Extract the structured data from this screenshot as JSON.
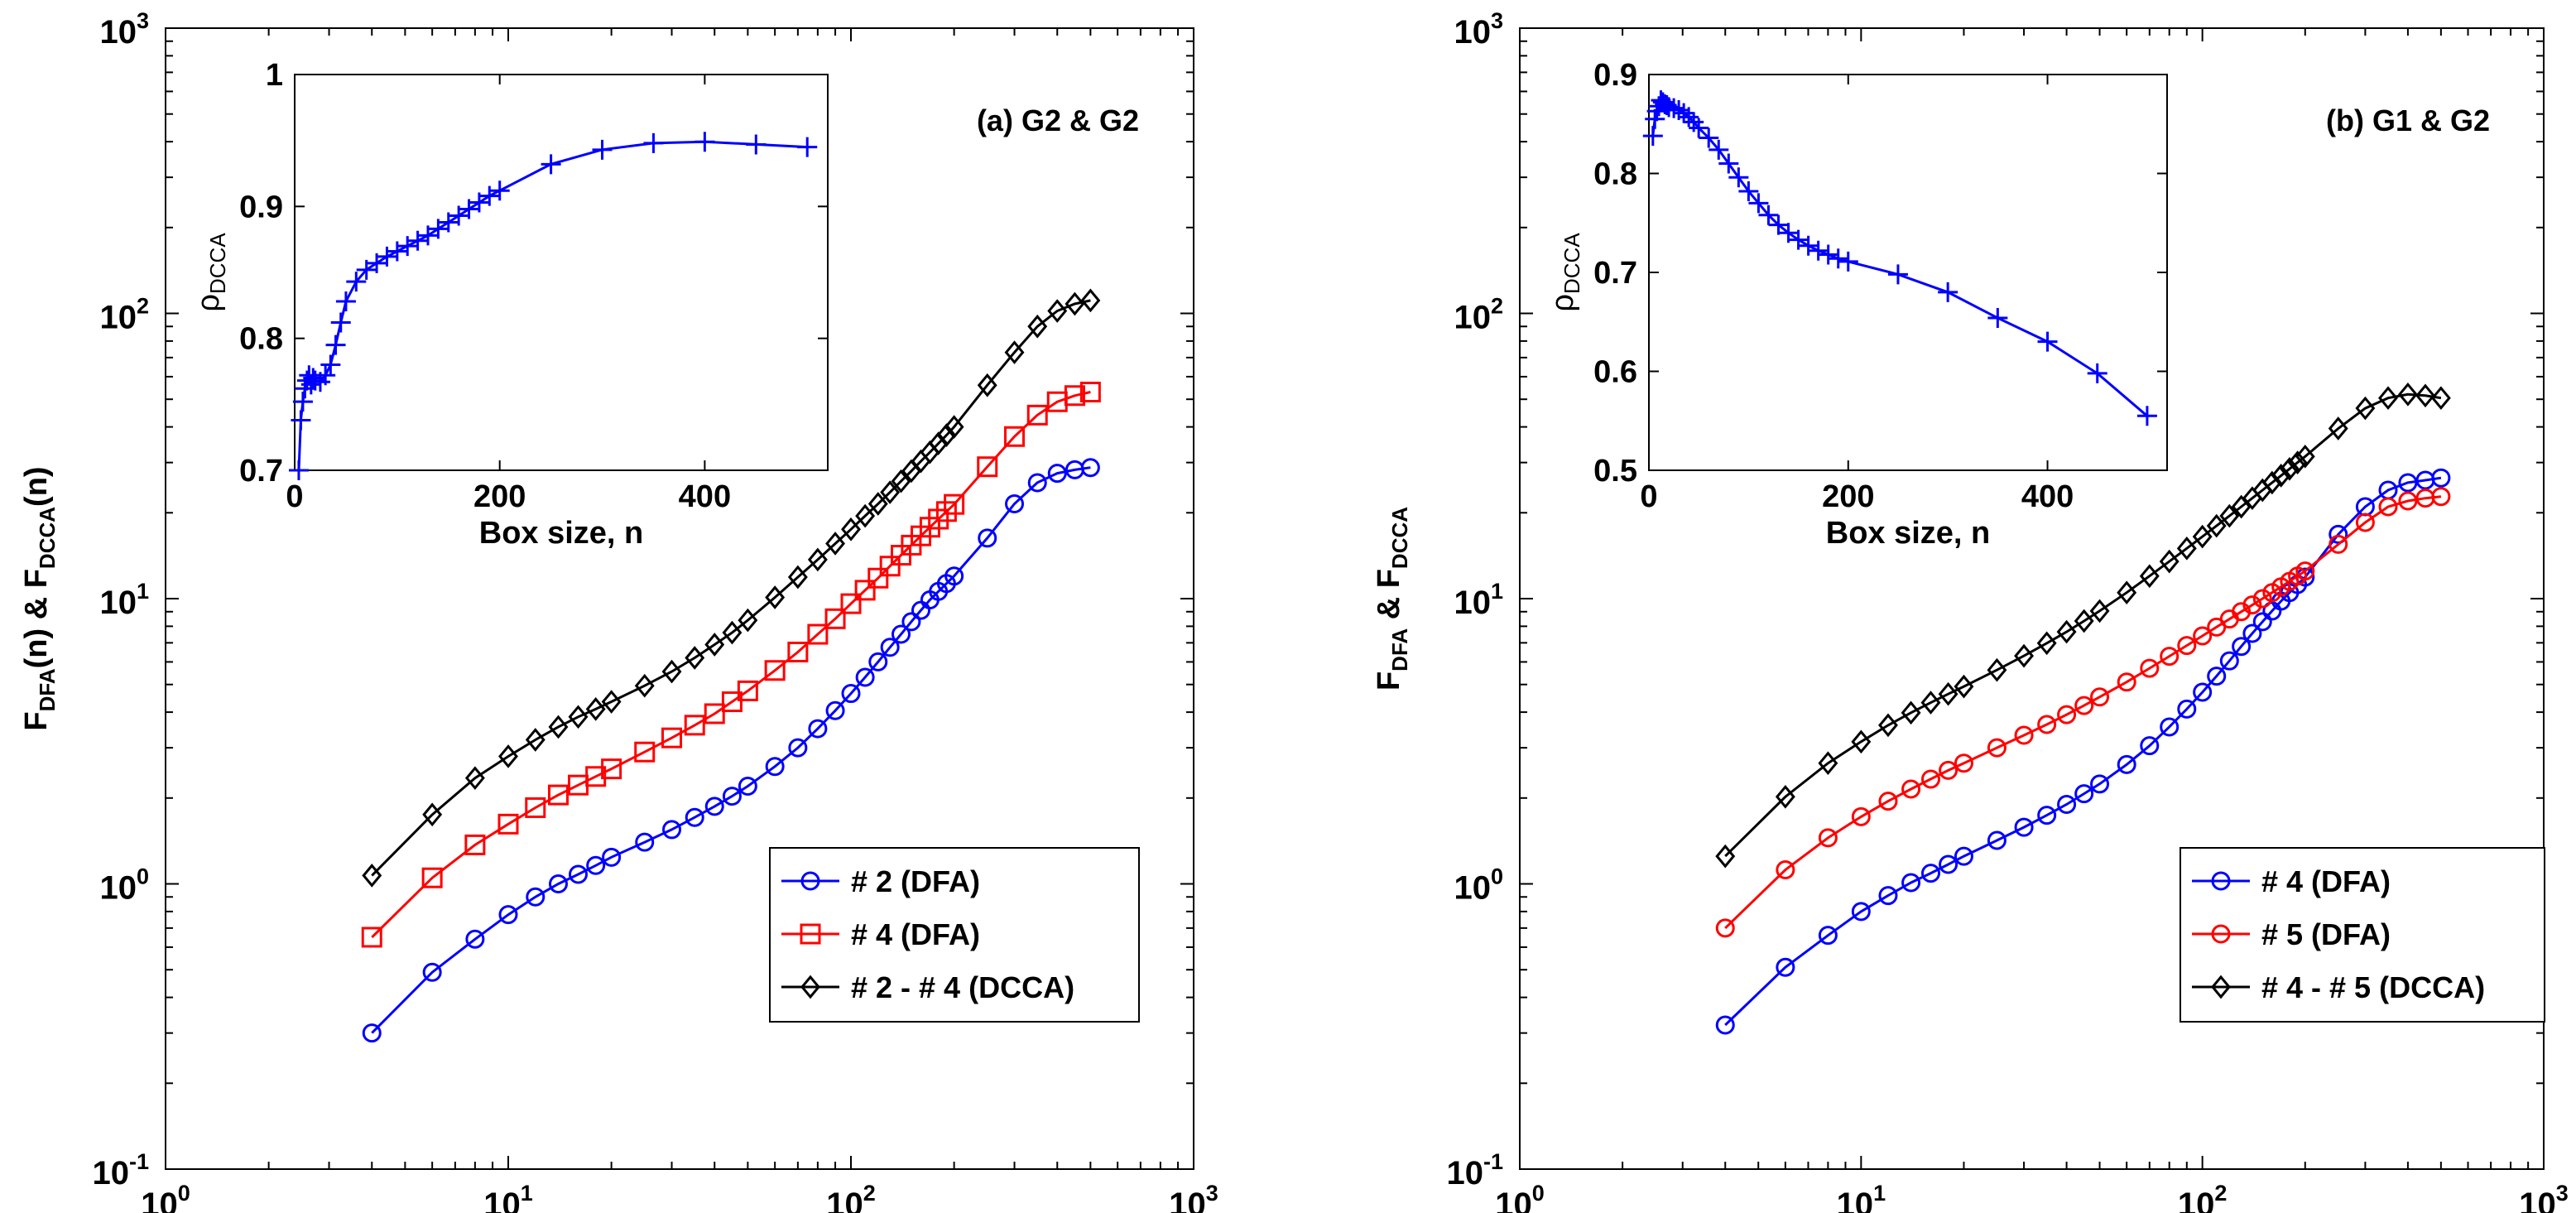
{
  "figure": {
    "panels": [
      {
        "id": "a",
        "panel_label": "(a) G2 & G2",
        "main": {
          "type": "line",
          "xscale": "log",
          "yscale": "log",
          "xlim": [
            1,
            1000
          ],
          "ylim": [
            0.1,
            1000
          ],
          "x_ticks": [
            {
              "base": "10",
              "exp": "0"
            },
            {
              "base": "10",
              "exp": "1"
            },
            {
              "base": "10",
              "exp": "2"
            },
            {
              "base": "10",
              "exp": "3"
            }
          ],
          "y_ticks": [
            {
              "base": "10",
              "exp": "-1"
            },
            {
              "base": "10",
              "exp": "0"
            },
            {
              "base": "10",
              "exp": "1"
            },
            {
              "base": "10",
              "exp": "2"
            },
            {
              "base": "10",
              "exp": "3"
            }
          ],
          "xlabel": "Box size, n",
          "ylabel_parts": [
            {
              "t": "F",
              "sub": false
            },
            {
              "t": "DFA",
              "sub": true
            },
            {
              "t": "(n) & F",
              "sub": false
            },
            {
              "t": "DCCA",
              "sub": true
            },
            {
              "t": "(n)",
              "sub": false
            }
          ],
          "legend_position": "bottom-right",
          "series": [
            {
              "name": "# 2 (DFA)",
              "color": "#0000ff",
              "marker": "circle",
              "x": [
                4,
                6,
                8,
                10,
                12,
                14,
                16,
                18,
                20,
                25,
                30,
                35,
                40,
                45,
                50,
                60,
                70,
                80,
                90,
                100,
                110,
                120,
                130,
                140,
                150,
                160,
                170,
                180,
                190,
                200,
                250,
                300,
                350,
                400,
                450,
                500
              ],
              "y": [
                0.3,
                0.49,
                0.64,
                0.78,
                0.9,
                1.0,
                1.08,
                1.16,
                1.24,
                1.4,
                1.55,
                1.71,
                1.87,
                2.03,
                2.2,
                2.58,
                3.0,
                3.5,
                4.05,
                4.65,
                5.3,
                6.0,
                6.75,
                7.5,
                8.3,
                9.1,
                9.9,
                10.6,
                11.3,
                12.0,
                16.3,
                21.5,
                25.5,
                27.5,
                28.3,
                28.8
              ]
            },
            {
              "name": "# 4 (DFA)",
              "color": "#ff0000",
              "marker": "square",
              "x": [
                4,
                6,
                8,
                10,
                12,
                14,
                16,
                18,
                20,
                25,
                30,
                35,
                40,
                45,
                50,
                60,
                70,
                80,
                90,
                100,
                110,
                120,
                130,
                140,
                150,
                160,
                170,
                180,
                190,
                200,
                250,
                300,
                350,
                400,
                450,
                500
              ],
              "y": [
                0.65,
                1.05,
                1.37,
                1.62,
                1.85,
                2.05,
                2.22,
                2.38,
                2.53,
                2.9,
                3.25,
                3.6,
                3.95,
                4.35,
                4.75,
                5.6,
                6.5,
                7.5,
                8.5,
                9.6,
                10.7,
                11.8,
                13.0,
                14.2,
                15.4,
                16.6,
                17.8,
                19.0,
                20.2,
                21.4,
                29.0,
                37.0,
                44.0,
                49.0,
                51.5,
                53.0
              ]
            },
            {
              "name": "# 2 - # 4 (DCCA)",
              "color": "#000000",
              "marker": "diamond",
              "x": [
                4,
                6,
                8,
                10,
                12,
                14,
                16,
                18,
                20,
                25,
                30,
                35,
                40,
                45,
                50,
                60,
                70,
                80,
                90,
                100,
                110,
                120,
                130,
                140,
                150,
                160,
                170,
                180,
                190,
                200,
                250,
                300,
                350,
                400,
                450,
                500
              ],
              "y": [
                1.07,
                1.75,
                2.35,
                2.8,
                3.2,
                3.55,
                3.85,
                4.1,
                4.35,
                4.95,
                5.55,
                6.2,
                6.9,
                7.6,
                8.4,
                10.1,
                11.9,
                13.7,
                15.6,
                17.5,
                19.5,
                21.5,
                23.6,
                25.8,
                28.0,
                30.3,
                32.6,
                35.0,
                37.4,
                40.0,
                56.0,
                73.0,
                90.0,
                102.0,
                108.0,
                111.0
              ]
            }
          ]
        },
        "inset": {
          "type": "line",
          "xlim": [
            0,
            520
          ],
          "ylim": [
            0.7,
            1.0
          ],
          "x_ticks": [
            "0",
            "200",
            "400"
          ],
          "y_ticks": [
            "0.7",
            "0.8",
            "0.9",
            "1"
          ],
          "xlabel": "Box size, n",
          "ylabel_main": "ρ",
          "ylabel_sub": "DCCA",
          "series": [
            {
              "color": "#0000ff",
              "marker": "plus",
              "x": [
                4,
                6,
                8,
                10,
                12,
                14,
                16,
                18,
                20,
                25,
                30,
                35,
                40,
                45,
                50,
                60,
                70,
                80,
                90,
                100,
                110,
                120,
                130,
                140,
                150,
                160,
                170,
                180,
                190,
                200,
                250,
                300,
                350,
                400,
                450,
                500
              ],
              "y": [
                0.7,
                0.738,
                0.752,
                0.762,
                0.768,
                0.772,
                0.765,
                0.77,
                0.768,
                0.767,
                0.772,
                0.78,
                0.795,
                0.812,
                0.828,
                0.843,
                0.852,
                0.857,
                0.862,
                0.866,
                0.87,
                0.874,
                0.878,
                0.883,
                0.888,
                0.893,
                0.898,
                0.903,
                0.908,
                0.912,
                0.932,
                0.943,
                0.948,
                0.949,
                0.947,
                0.945
              ]
            }
          ]
        }
      },
      {
        "id": "b",
        "panel_label": "(b) G1 & G2",
        "main": {
          "type": "line",
          "xscale": "log",
          "yscale": "log",
          "xlim": [
            1,
            1000
          ],
          "ylim": [
            0.1,
            1000
          ],
          "x_ticks": [
            {
              "base": "10",
              "exp": "0"
            },
            {
              "base": "10",
              "exp": "1"
            },
            {
              "base": "10",
              "exp": "2"
            },
            {
              "base": "10",
              "exp": "3"
            }
          ],
          "y_ticks": [
            {
              "base": "10",
              "exp": "-1"
            },
            {
              "base": "10",
              "exp": "0"
            },
            {
              "base": "10",
              "exp": "1"
            },
            {
              "base": "10",
              "exp": "2"
            },
            {
              "base": "10",
              "exp": "3"
            }
          ],
          "xlabel": "Box size, n",
          "ylabel_parts": [
            {
              "t": "F",
              "sub": false
            },
            {
              "t": "DFA",
              "sub": true
            },
            {
              "t": " & F",
              "sub": false
            },
            {
              "t": "DCCA",
              "sub": true
            }
          ],
          "legend_position": "bottom-right",
          "series": [
            {
              "name": "# 4 (DFA)",
              "color": "#0000ff",
              "marker": "circle",
              "x": [
                4,
                6,
                8,
                10,
                12,
                14,
                16,
                18,
                20,
                25,
                30,
                35,
                40,
                45,
                50,
                60,
                70,
                80,
                90,
                100,
                110,
                120,
                130,
                140,
                150,
                160,
                170,
                180,
                190,
                200,
                250,
                300,
                350,
                400,
                450,
                500
              ],
              "y": [
                0.32,
                0.51,
                0.66,
                0.8,
                0.91,
                1.01,
                1.09,
                1.17,
                1.25,
                1.42,
                1.58,
                1.74,
                1.9,
                2.07,
                2.24,
                2.62,
                3.05,
                3.55,
                4.1,
                4.7,
                5.35,
                6.05,
                6.8,
                7.55,
                8.3,
                9.05,
                9.8,
                10.5,
                11.2,
                11.9,
                16.8,
                21.0,
                24.0,
                25.5,
                26.0,
                26.5
              ]
            },
            {
              "name": "# 5 (DFA)",
              "color": "#ff0000",
              "marker": "circle",
              "x": [
                4,
                6,
                8,
                10,
                12,
                14,
                16,
                18,
                20,
                25,
                30,
                35,
                40,
                45,
                50,
                60,
                70,
                80,
                90,
                100,
                110,
                120,
                130,
                140,
                150,
                160,
                170,
                180,
                190,
                200,
                250,
                300,
                350,
                400,
                450,
                500
              ],
              "y": [
                0.7,
                1.12,
                1.45,
                1.72,
                1.95,
                2.15,
                2.33,
                2.5,
                2.65,
                3.0,
                3.32,
                3.62,
                3.92,
                4.22,
                4.52,
                5.1,
                5.7,
                6.28,
                6.85,
                7.4,
                7.95,
                8.48,
                9.0,
                9.5,
                10.0,
                10.5,
                11.0,
                11.5,
                12.0,
                12.5,
                15.5,
                18.5,
                21.0,
                22.0,
                22.5,
                22.8
              ]
            },
            {
              "name": "# 4 - # 5 (DCCA)",
              "color": "#000000",
              "marker": "diamond",
              "x": [
                4,
                6,
                8,
                10,
                12,
                14,
                16,
                18,
                20,
                25,
                30,
                35,
                40,
                45,
                50,
                60,
                70,
                80,
                90,
                100,
                110,
                120,
                130,
                140,
                150,
                160,
                170,
                180,
                190,
                200,
                250,
                300,
                350,
                400,
                450,
                500
              ],
              "y": [
                1.25,
                2.02,
                2.65,
                3.15,
                3.6,
                3.98,
                4.32,
                4.63,
                4.92,
                5.62,
                6.3,
                6.98,
                7.65,
                8.35,
                9.05,
                10.5,
                12.0,
                13.5,
                15.0,
                16.5,
                18.0,
                19.5,
                21.0,
                22.5,
                24.0,
                25.5,
                27.0,
                28.5,
                30.0,
                31.5,
                39.5,
                46.5,
                50.5,
                52.0,
                51.5,
                50.5
              ]
            }
          ]
        },
        "inset": {
          "type": "line",
          "xlim": [
            0,
            520
          ],
          "ylim": [
            0.5,
            0.9
          ],
          "x_ticks": [
            "0",
            "200",
            "400"
          ],
          "y_ticks": [
            "0.5",
            "0.6",
            "0.7",
            "0.8",
            "0.9"
          ],
          "xlabel": "Box size, n",
          "ylabel_main": "ρ",
          "ylabel_sub": "DCCA",
          "series": [
            {
              "color": "#0000ff",
              "marker": "plus",
              "x": [
                4,
                6,
                8,
                10,
                12,
                14,
                16,
                18,
                20,
                25,
                30,
                35,
                40,
                45,
                50,
                60,
                70,
                80,
                90,
                100,
                110,
                120,
                130,
                140,
                150,
                160,
                170,
                180,
                190,
                200,
                250,
                300,
                350,
                400,
                450,
                500
              ],
              "y": [
                0.838,
                0.855,
                0.863,
                0.868,
                0.874,
                0.872,
                0.87,
                0.869,
                0.867,
                0.866,
                0.864,
                0.861,
                0.857,
                0.852,
                0.846,
                0.836,
                0.824,
                0.81,
                0.796,
                0.782,
                0.77,
                0.758,
                0.748,
                0.74,
                0.733,
                0.727,
                0.722,
                0.718,
                0.714,
                0.711,
                0.698,
                0.68,
                0.654,
                0.63,
                0.598,
                0.555
              ]
            }
          ]
        }
      }
    ]
  }
}
